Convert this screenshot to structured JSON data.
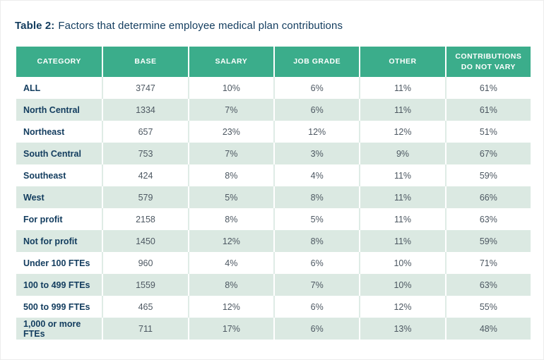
{
  "title": {
    "prefix": "Table 2:",
    "rest": "Factors that determine employee medical plan contributions"
  },
  "colors": {
    "header_green": "#3bad8b",
    "row_stripe_green": "#dbe9e2",
    "title_navy": "#123c5e",
    "category_navy": "#123c5e",
    "value_gray": "#4d5862",
    "white_row_separator": "#dfece6"
  },
  "chart_data": {
    "type": "table",
    "title": "Table 2: Factors that determine employee medical plan contributions",
    "columns": [
      "CATEGORY",
      "BASE",
      "SALARY",
      "JOB GRADE",
      "OTHER",
      "CONTRIBUTIONS DO NOT VARY"
    ],
    "rows": [
      [
        "ALL",
        "3747",
        "10%",
        "6%",
        "11%",
        "61%"
      ],
      [
        "North Central",
        "1334",
        "7%",
        "6%",
        "11%",
        "61%"
      ],
      [
        "Northeast",
        "657",
        "23%",
        "12%",
        "12%",
        "51%"
      ],
      [
        "South Central",
        "753",
        "7%",
        "3%",
        "9%",
        "67%"
      ],
      [
        "Southeast",
        "424",
        "8%",
        "4%",
        "11%",
        "59%"
      ],
      [
        "West",
        "579",
        "5%",
        "8%",
        "11%",
        "66%"
      ],
      [
        "For profit",
        "2158",
        "8%",
        "5%",
        "11%",
        "63%"
      ],
      [
        "Not for profit",
        "1450",
        "12%",
        "8%",
        "11%",
        "59%"
      ],
      [
        "Under 100 FTEs",
        "960",
        "4%",
        "6%",
        "10%",
        "71%"
      ],
      [
        "100 to 499 FTEs",
        "1559",
        "8%",
        "7%",
        "10%",
        "63%"
      ],
      [
        "500 to 999 FTEs",
        "465",
        "12%",
        "6%",
        "12%",
        "55%"
      ],
      [
        "1,000 or more FTEs",
        "711",
        "17%",
        "6%",
        "13%",
        "48%"
      ]
    ],
    "layout": {
      "striped_rows": true,
      "stripe_pattern": "even rows shaded light green",
      "header_style": "solid green, white uppercase bold text",
      "value_alignment": "center",
      "category_alignment": "left"
    }
  }
}
